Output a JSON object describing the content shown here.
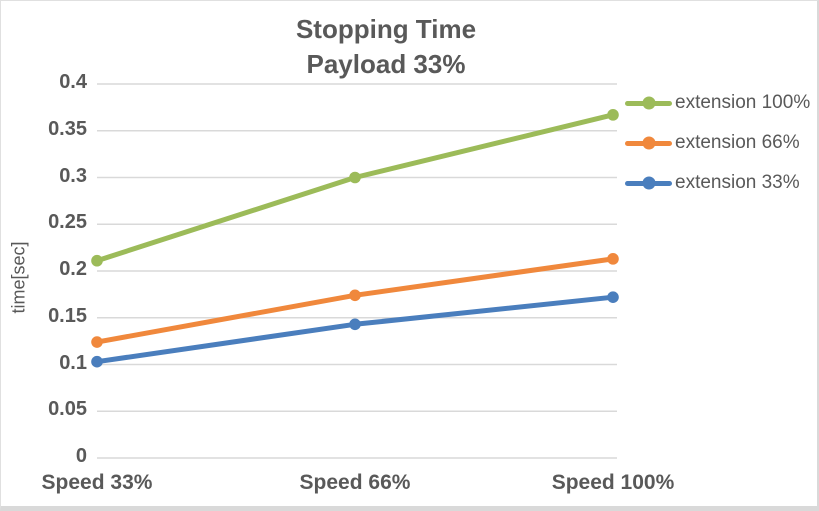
{
  "chart_data": {
    "type": "line",
    "title": "Stopping Time",
    "subtitle": "Payload 33%",
    "ylabel": "time[sec]",
    "xlabel": "",
    "categories": [
      "Speed 33%",
      "Speed 66%",
      "Speed 100%"
    ],
    "series": [
      {
        "name": "extension 100%",
        "color": "#9CBB59",
        "values": [
          0.211,
          0.3,
          0.367
        ]
      },
      {
        "name": "extension 66%",
        "color": "#F0883C",
        "values": [
          0.124,
          0.174,
          0.213
        ]
      },
      {
        "name": "extension 33%",
        "color": "#4A7EBD",
        "values": [
          0.103,
          0.143,
          0.172
        ]
      }
    ],
    "ylim": [
      0,
      0.4
    ],
    "ytick_step": 0.05,
    "ytick_labels": [
      "0",
      "0.05",
      "0.1",
      "0.15",
      "0.2",
      "0.25",
      "0.3",
      "0.35",
      "0.4"
    ],
    "grid": "horizontal",
    "legend_position": "right",
    "marker": "circle",
    "colors": {
      "text": "#595959",
      "grid": "#D9D9D9"
    }
  }
}
